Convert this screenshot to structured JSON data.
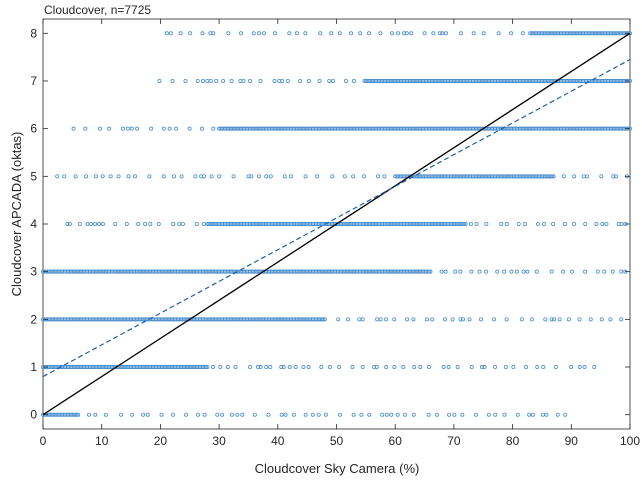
{
  "colors": {
    "points": "#4a8fcf",
    "identity_line": "#000000",
    "fit_line": "#1f5fa8",
    "axis": "#262626",
    "background": "#ffffff"
  },
  "chart_data": {
    "type": "scatter",
    "title": "Cloudcover, n=7725",
    "xlabel": "Cloudcover Sky Camera (%)",
    "ylabel": "Cloudcover APCADA (oktas)",
    "xlim": [
      0,
      100
    ],
    "ylim": [
      -0.3,
      8.3
    ],
    "xticks": [
      0,
      10,
      20,
      30,
      40,
      50,
      60,
      70,
      80,
      90,
      100
    ],
    "yticks": [
      0,
      1,
      2,
      3,
      4,
      5,
      6,
      7,
      8
    ],
    "grid": false,
    "marker": "open-circle",
    "series_points_description_levels": [
      0,
      1,
      2,
      3,
      4,
      5,
      6,
      7,
      8
    ],
    "point_bands": [
      {
        "y": 0,
        "dense": [
          [
            0,
            6
          ]
        ],
        "sparse": [
          [
            6,
            90.5
          ]
        ]
      },
      {
        "y": 1,
        "dense": [
          [
            0,
            28
          ]
        ],
        "sparse": [
          [
            28,
            95
          ]
        ]
      },
      {
        "y": 2,
        "dense": [
          [
            0,
            48
          ]
        ],
        "sparse": [
          [
            48,
            100
          ]
        ]
      },
      {
        "y": 3,
        "dense": [
          [
            0,
            66
          ]
        ],
        "sparse": [
          [
            66,
            100
          ]
        ]
      },
      {
        "y": 4,
        "dense": [
          [
            28,
            72
          ]
        ],
        "sparse": [
          [
            3,
            28
          ],
          [
            72,
            100
          ]
        ]
      },
      {
        "y": 5,
        "dense": [
          [
            60,
            87
          ]
        ],
        "sparse": [
          [
            1,
            60
          ],
          [
            87,
            100
          ]
        ]
      },
      {
        "y": 6,
        "dense": [
          [
            30,
            100
          ]
        ],
        "sparse": [
          [
            3,
            30
          ]
        ]
      },
      {
        "y": 7,
        "dense": [
          [
            55,
            100
          ]
        ],
        "sparse": [
          [
            19,
            55
          ]
        ]
      },
      {
        "y": 8,
        "dense": [
          [
            83,
            100
          ]
        ],
        "sparse": [
          [
            20,
            83
          ]
        ]
      }
    ],
    "lines": [
      {
        "style": "solid",
        "points": [
          [
            0,
            0
          ],
          [
            100,
            8
          ]
        ]
      },
      {
        "style": "dashed",
        "points": [
          [
            0,
            0.8
          ],
          [
            100,
            7.45
          ]
        ]
      }
    ]
  }
}
